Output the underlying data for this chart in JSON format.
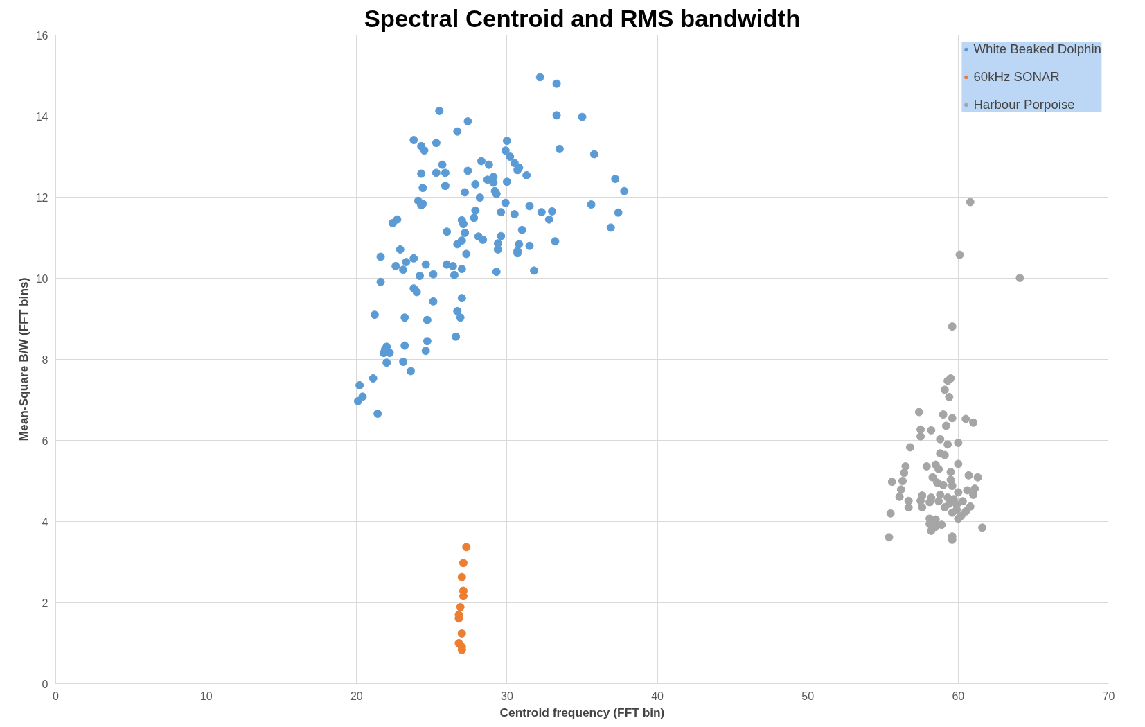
{
  "chart_data": {
    "type": "scatter",
    "title": "Spectral Centroid and RMS bandwidth",
    "xlabel": "Centroid frequency (FFT bin)",
    "ylabel": "Mean-Square B/W (FFT bins)",
    "xlim": [
      0,
      70
    ],
    "ylim": [
      0,
      16
    ],
    "xticks": [
      0,
      10,
      20,
      30,
      40,
      50,
      60,
      70
    ],
    "yticks": [
      0,
      2,
      4,
      6,
      8,
      10,
      12,
      14,
      16
    ],
    "grid": true,
    "legend": "top right",
    "marker": "circle",
    "series": [
      {
        "name": "White Beaked Dolphin",
        "color": "#5b9bd5",
        "x": [
          32.2,
          33.3,
          25.5,
          27.4,
          26.7,
          33.3,
          35.0,
          23.8,
          25.3,
          30.0,
          24.3,
          24.5,
          29.9,
          33.5,
          35.8,
          30.2,
          28.3,
          28.8,
          25.7,
          30.5,
          30.8,
          30.7,
          27.4,
          24.3,
          25.3,
          25.9,
          31.3,
          29.1,
          28.7,
          30.0,
          29.1,
          27.9,
          25.9,
          24.4,
          37.2,
          37.8,
          29.2,
          27.2,
          29.3,
          28.2,
          24.1,
          24.4,
          29.9,
          31.5,
          35.6,
          24.3,
          27.9,
          29.6,
          32.3,
          33.0,
          37.4,
          30.5,
          27.8,
          22.7,
          22.4,
          27.0,
          27.1,
          32.8,
          36.9,
          31.0,
          26.0,
          27.2,
          28.1,
          29.6,
          28.4,
          27.0,
          33.2,
          29.4,
          26.7,
          30.8,
          31.5,
          22.9,
          29.4,
          30.7,
          30.7,
          27.3,
          21.6,
          23.8,
          23.3,
          22.6,
          24.6,
          26.0,
          26.4,
          23.1,
          27.0,
          31.8,
          29.3,
          25.1,
          24.2,
          26.5,
          21.6,
          23.8,
          24.0,
          25.1,
          27.0,
          26.7,
          21.2,
          23.2,
          26.9,
          24.7,
          26.6,
          24.7,
          23.2,
          22.0,
          21.9,
          21.8,
          22.2,
          24.6,
          23.1,
          22.0,
          23.6,
          21.1,
          20.2,
          20.4,
          20.1,
          21.4
        ],
        "values": [
          14.96,
          14.8,
          14.13,
          13.87,
          13.62,
          14.02,
          13.98,
          13.41,
          13.34,
          13.39,
          13.26,
          13.15,
          13.15,
          13.19,
          13.06,
          13.0,
          12.89,
          12.8,
          12.8,
          12.84,
          12.73,
          12.67,
          12.65,
          12.58,
          12.6,
          12.6,
          12.54,
          12.5,
          12.43,
          12.38,
          12.36,
          12.32,
          12.28,
          12.23,
          12.45,
          12.15,
          12.15,
          12.12,
          12.08,
          11.99,
          11.91,
          11.84,
          11.86,
          11.78,
          11.82,
          11.8,
          11.67,
          11.63,
          11.63,
          11.65,
          11.62,
          11.58,
          11.49,
          11.45,
          11.36,
          11.43,
          11.34,
          11.45,
          11.25,
          11.19,
          11.15,
          11.12,
          11.03,
          11.04,
          10.95,
          10.93,
          10.91,
          10.86,
          10.84,
          10.84,
          10.8,
          10.71,
          10.71,
          10.67,
          10.62,
          10.6,
          10.53,
          10.49,
          10.4,
          10.3,
          10.34,
          10.34,
          10.3,
          10.21,
          10.23,
          10.19,
          10.16,
          10.1,
          10.06,
          10.08,
          9.91,
          9.75,
          9.66,
          9.43,
          9.51,
          9.19,
          9.1,
          9.03,
          9.03,
          8.97,
          8.56,
          8.45,
          8.34,
          8.31,
          8.25,
          8.16,
          8.16,
          8.21,
          7.94,
          7.92,
          7.71,
          7.53,
          7.36,
          7.08,
          6.97,
          6.66
        ]
      },
      {
        "name": "60kHz SONAR",
        "color": "#ed7d31",
        "x": [
          27.3,
          27.1,
          27.0,
          27.1,
          27.1,
          26.9,
          26.8,
          26.8,
          27.0,
          26.8,
          27.0,
          27.0
        ],
        "values": [
          3.37,
          2.98,
          2.63,
          2.29,
          2.16,
          1.89,
          1.7,
          1.61,
          1.24,
          1.0,
          0.91,
          0.83
        ]
      },
      {
        "name": "Harbour Porpoise",
        "color": "#a5a5a5",
        "x": [
          60.8,
          60.1,
          64.1,
          59.6,
          59.5,
          59.3,
          59.1,
          59.4,
          57.4,
          60.5,
          59.0,
          59.6,
          61.0,
          57.5,
          58.2,
          59.2,
          57.5,
          58.8,
          60.0,
          59.3,
          56.8,
          58.8,
          59.1,
          60.0,
          56.5,
          57.9,
          58.5,
          58.7,
          56.4,
          59.5,
          60.7,
          61.3,
          58.3,
          59.5,
          55.6,
          56.3,
          58.6,
          59.0,
          59.6,
          61.1,
          56.2,
          60.6,
          60.0,
          57.6,
          58.8,
          61.0,
          56.1,
          58.2,
          59.3,
          59.7,
          57.5,
          56.7,
          58.7,
          60.3,
          58.1,
          59.4,
          59.9,
          59.1,
          60.8,
          56.7,
          57.6,
          59.9,
          60.5,
          59.6,
          55.5,
          60.2,
          58.1,
          58.5,
          60.0,
          58.1,
          58.9,
          58.5,
          61.6,
          58.2,
          55.4,
          59.6,
          59.6
        ],
        "values": [
          11.88,
          10.58,
          10.01,
          8.81,
          7.53,
          7.47,
          7.25,
          7.07,
          6.7,
          6.53,
          6.64,
          6.55,
          6.44,
          6.27,
          6.25,
          6.36,
          6.1,
          6.03,
          5.94,
          5.9,
          5.83,
          5.68,
          5.64,
          5.42,
          5.36,
          5.36,
          5.4,
          5.29,
          5.2,
          5.22,
          5.14,
          5.09,
          5.09,
          5.03,
          4.98,
          5.0,
          4.96,
          4.9,
          4.88,
          4.81,
          4.79,
          4.77,
          4.72,
          4.64,
          4.66,
          4.66,
          4.61,
          4.59,
          4.59,
          4.55,
          4.51,
          4.51,
          4.5,
          4.5,
          4.48,
          4.44,
          4.42,
          4.35,
          4.37,
          4.35,
          4.35,
          4.29,
          4.25,
          4.22,
          4.2,
          4.14,
          4.07,
          4.05,
          4.07,
          3.94,
          3.92,
          3.87,
          3.85,
          3.77,
          3.61,
          3.63,
          3.55
        ]
      }
    ]
  }
}
